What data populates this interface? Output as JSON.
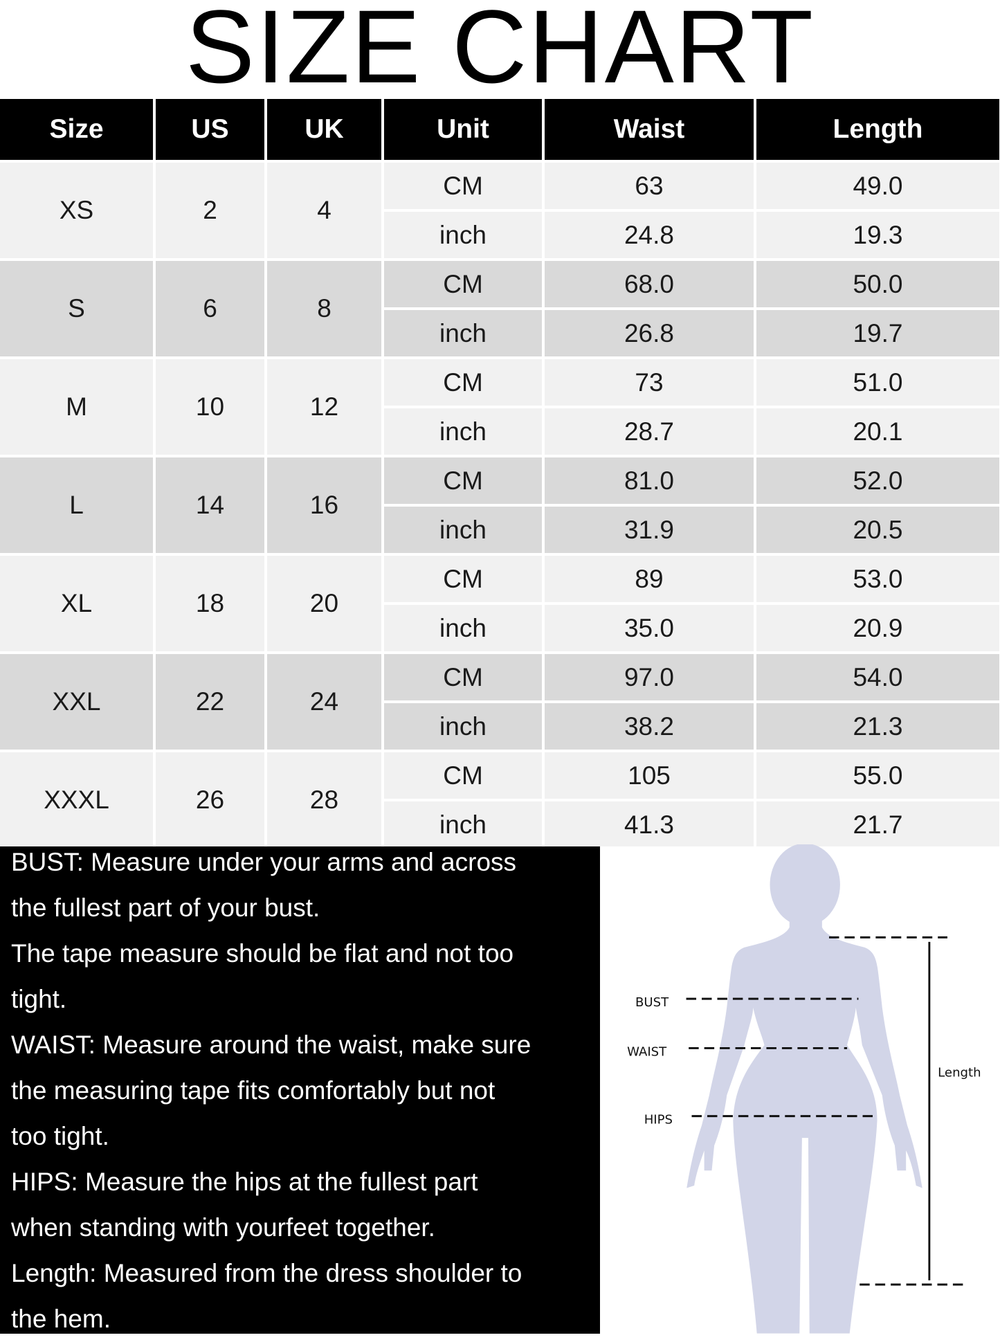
{
  "title": "SIZE CHART",
  "table": {
    "headers": [
      "Size",
      "US",
      "UK",
      "Unit",
      "Waist",
      "Length"
    ],
    "rows": [
      {
        "size": "XS",
        "us": "2",
        "uk": "4",
        "cm": {
          "unit": "CM",
          "waist": "63",
          "length": "49.0"
        },
        "inch": {
          "unit": "inch",
          "waist": "24.8",
          "length": "19.3"
        }
      },
      {
        "size": "S",
        "us": "6",
        "uk": "8",
        "cm": {
          "unit": "CM",
          "waist": "68.0",
          "length": "50.0"
        },
        "inch": {
          "unit": "inch",
          "waist": "26.8",
          "length": "19.7"
        }
      },
      {
        "size": "M",
        "us": "10",
        "uk": "12",
        "cm": {
          "unit": "CM",
          "waist": "73",
          "length": "51.0"
        },
        "inch": {
          "unit": "inch",
          "waist": "28.7",
          "length": "20.1"
        }
      },
      {
        "size": "L",
        "us": "14",
        "uk": "16",
        "cm": {
          "unit": "CM",
          "waist": "81.0",
          "length": "52.0"
        },
        "inch": {
          "unit": "inch",
          "waist": "31.9",
          "length": "20.5"
        }
      },
      {
        "size": "XL",
        "us": "18",
        "uk": "20",
        "cm": {
          "unit": "CM",
          "waist": "89",
          "length": "53.0"
        },
        "inch": {
          "unit": "inch",
          "waist": "35.0",
          "length": "20.9"
        }
      },
      {
        "size": "XXL",
        "us": "22",
        "uk": "24",
        "cm": {
          "unit": "CM",
          "waist": "97.0",
          "length": "54.0"
        },
        "inch": {
          "unit": "inch",
          "waist": "38.2",
          "length": "21.3"
        }
      },
      {
        "size": "XXXL",
        "us": "26",
        "uk": "28",
        "cm": {
          "unit": "CM",
          "waist": "105",
          "length": "55.0"
        },
        "inch": {
          "unit": "inch",
          "waist": "41.3",
          "length": "21.7"
        }
      }
    ],
    "colors": {
      "header_bg": "#000000",
      "row_light": "#f1f1f1",
      "row_dark": "#d9d9d9"
    }
  },
  "instructions": [
    "BUST: Measure under your arms and across",
    "the fullest part of your bust.",
    "The tape measure should be flat and not too",
    "tight.",
    "WAIST: Measure around the waist, make sure",
    "the measuring tape fits comfortably but not",
    "too tight.",
    "HIPS: Measure the hips at the fullest part",
    "when standing with yourfeet together.",
    "Length: Measured from the dress shoulder to",
    "the hem."
  ],
  "figure": {
    "labels": {
      "bust": "BUST",
      "waist": "WAIST",
      "hips": "HIPS",
      "length": "Length"
    },
    "silhouette_color": "#d2d5e8"
  }
}
